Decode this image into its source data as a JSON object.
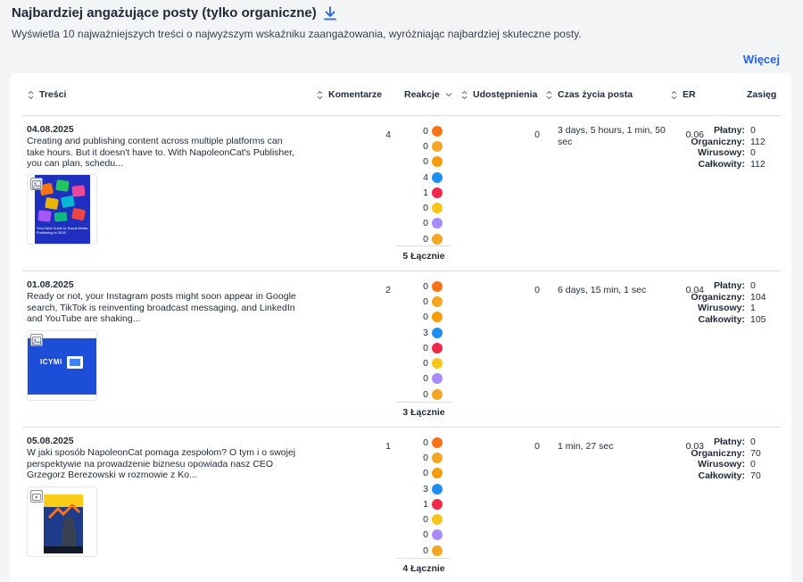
{
  "header": {
    "title": "Najbardziej angażujące posty (tylko organiczne)",
    "description": "Wyświetla 10 najważniejszych treści o najwyższym wskaźniku zaangażowania, wyróżniając najbardziej skuteczne posty.",
    "more_link": "Więcej"
  },
  "columns": {
    "content": "Treści",
    "comments": "Komentarze",
    "reactions": "Reakcje",
    "shares": "Udostępnienia",
    "lifetime": "Czas życia posta",
    "er": "ER",
    "reach": "Zasięg"
  },
  "reach_labels": {
    "paid": "Płatny:",
    "organic": "Organiczny:",
    "viral": "Wirusowy:",
    "total": "Całkowity:"
  },
  "reaction_icons": [
    "angry-icon",
    "haha-icon",
    "wow-laugh-icon",
    "like-icon",
    "love-icon",
    "sad-icon",
    "care-icon",
    "surprised-icon"
  ],
  "colors": {
    "accent": "#2563eb",
    "like": "#1d8ff0",
    "love": "#f0284a",
    "reaction": "#f5a623",
    "care": "#a78bfa"
  },
  "posts": [
    {
      "date": "04.08.2025",
      "text": "Creating and publishing content across multiple platforms can take hours. But it doesn't have to. With NapoleonCat's Publisher, you can plan, schedu...",
      "comments": "4",
      "reactions": [
        "0",
        "0",
        "0",
        "4",
        "1",
        "0",
        "0",
        "0"
      ],
      "reactions_total": "5 Łącznie",
      "shares": "0",
      "lifetime": "3 days, 5 hours, 1 min, 50 sec",
      "er": "0.06",
      "reach": {
        "paid": "0",
        "organic": "112",
        "viral": "0",
        "total": "112"
      }
    },
    {
      "date": "01.08.2025",
      "text": "Ready or not, your Instagram posts might soon appear in Google search, TikTok is reinventing broadcast messaging, and LinkedIn and YouTube are shaking...",
      "comments": "2",
      "reactions": [
        "0",
        "0",
        "0",
        "3",
        "0",
        "0",
        "0",
        "0"
      ],
      "reactions_total": "3 Łącznie",
      "shares": "0",
      "lifetime": "6 days, 15 min, 1 sec",
      "er": "0.04",
      "reach": {
        "paid": "0",
        "organic": "104",
        "viral": "1",
        "total": "105"
      }
    },
    {
      "date": "05.08.2025",
      "text": "W jaki sposób NapoleonCat pomaga zespołom? O tym i o swojej perspektywie na prowadzenie biznesu opowiada nasz CEO Grzegorz Berezowski w rozmowie z Ko...",
      "comments": "1",
      "reactions": [
        "0",
        "0",
        "0",
        "3",
        "1",
        "0",
        "0",
        "0"
      ],
      "reactions_total": "4 Łącznie",
      "shares": "0",
      "lifetime": "1 min, 27 sec",
      "er": "0.03",
      "reach": {
        "paid": "0",
        "organic": "70",
        "viral": "0",
        "total": "70"
      }
    }
  ],
  "thumbnails": [
    "image",
    "image",
    "video"
  ],
  "thumb_texts": [
    "Your Best Guide to Social Media Publishing in 2025",
    "ICYMI"
  ]
}
